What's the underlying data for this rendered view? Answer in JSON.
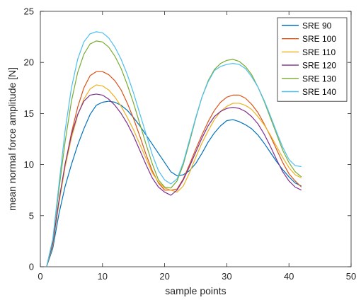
{
  "chart_data": {
    "type": "line",
    "xlabel": "sample points",
    "ylabel": "mean normal force amplitude [N]",
    "xlim": [
      0,
      50
    ],
    "ylim": [
      0,
      25
    ],
    "xticks": [
      0,
      10,
      20,
      30,
      40,
      50
    ],
    "yticks": [
      0,
      5,
      10,
      15,
      20,
      25
    ],
    "grid": false,
    "legend_position": "top-right",
    "x": [
      1,
      2,
      3,
      4,
      5,
      6,
      7,
      8,
      9,
      10,
      11,
      12,
      13,
      14,
      15,
      16,
      17,
      18,
      19,
      20,
      21,
      22,
      23,
      24,
      25,
      26,
      27,
      28,
      29,
      30,
      31,
      32,
      33,
      34,
      35,
      36,
      37,
      38,
      39,
      40,
      41,
      42
    ],
    "series": [
      {
        "name": "SRE 90",
        "color": "#0072BD",
        "values": [
          0,
          1.8,
          5.2,
          7.9,
          10.0,
          11.9,
          13.5,
          14.9,
          15.8,
          16.1,
          16.2,
          16.1,
          15.8,
          15.3,
          14.6,
          13.8,
          12.9,
          12.0,
          11.1,
          10.2,
          9.3,
          8.9,
          9.0,
          9.4,
          10.1,
          11.1,
          12.2,
          13.1,
          13.8,
          14.3,
          14.4,
          14.2,
          13.9,
          13.5,
          12.9,
          12.1,
          11.2,
          10.3,
          9.5,
          8.8,
          8.2,
          7.9
        ]
      },
      {
        "name": "SRE 100",
        "color": "#D95319",
        "values": [
          0,
          2.2,
          6.4,
          10.0,
          13.1,
          15.6,
          17.5,
          18.7,
          19.1,
          19.1,
          18.8,
          18.2,
          17.3,
          16.0,
          14.5,
          12.8,
          11.0,
          9.4,
          8.2,
          7.5,
          7.5,
          7.6,
          8.6,
          10.0,
          11.5,
          12.9,
          14.2,
          15.3,
          16.1,
          16.6,
          16.8,
          16.8,
          16.5,
          15.9,
          15.1,
          14.0,
          12.8,
          11.5,
          10.2,
          9.1,
          8.4,
          7.8
        ]
      },
      {
        "name": "SRE 110",
        "color": "#EDB120",
        "values": [
          0,
          2.1,
          6.2,
          9.8,
          12.6,
          14.8,
          16.4,
          17.4,
          17.8,
          17.7,
          17.3,
          16.6,
          15.7,
          14.6,
          13.4,
          12.0,
          10.6,
          9.2,
          8.3,
          7.7,
          7.5,
          7.3,
          7.9,
          9.2,
          10.7,
          12.1,
          13.3,
          14.4,
          15.2,
          15.7,
          16.0,
          16.0,
          15.8,
          15.4,
          14.7,
          13.9,
          12.9,
          11.8,
          10.7,
          9.7,
          9.0,
          8.7
        ]
      },
      {
        "name": "SRE 120",
        "color": "#7E2F8E",
        "values": [
          0,
          2.3,
          6.5,
          10.1,
          12.9,
          14.9,
          16.2,
          16.8,
          16.9,
          16.8,
          16.4,
          15.8,
          15.0,
          14.0,
          12.8,
          11.4,
          10.0,
          8.7,
          7.8,
          7.3,
          7.0,
          7.5,
          8.5,
          9.8,
          11.2,
          12.6,
          13.8,
          14.7,
          15.2,
          15.5,
          15.6,
          15.5,
          15.2,
          14.7,
          14.0,
          13.0,
          11.8,
          10.5,
          9.3,
          8.4,
          7.8,
          7.5
        ]
      },
      {
        "name": "SRE 130",
        "color": "#77AC30",
        "values": [
          0,
          2.6,
          7.6,
          12.3,
          16.2,
          19.0,
          20.8,
          21.8,
          22.1,
          22.0,
          21.5,
          20.6,
          19.4,
          17.8,
          16.0,
          14.0,
          12.0,
          10.1,
          8.5,
          7.8,
          7.7,
          8.4,
          10.0,
          12.2,
          14.5,
          16.6,
          18.2,
          19.3,
          19.9,
          20.2,
          20.3,
          20.1,
          19.6,
          18.8,
          17.6,
          16.2,
          14.6,
          13.0,
          11.4,
          10.2,
          9.3,
          8.8
        ]
      },
      {
        "name": "SRE 140",
        "color": "#4DBEEE",
        "values": [
          0,
          2.7,
          8.1,
          13.4,
          17.5,
          20.3,
          22.0,
          22.8,
          23.0,
          22.9,
          22.4,
          21.5,
          20.3,
          18.8,
          17.0,
          15.0,
          13.0,
          11.0,
          9.4,
          8.5,
          8.1,
          8.6,
          10.2,
          12.4,
          14.6,
          16.6,
          18.1,
          19.2,
          19.6,
          19.8,
          19.9,
          19.8,
          19.4,
          18.6,
          17.6,
          16.3,
          14.8,
          13.2,
          11.7,
          10.5,
          9.9,
          9.8
        ]
      }
    ]
  }
}
